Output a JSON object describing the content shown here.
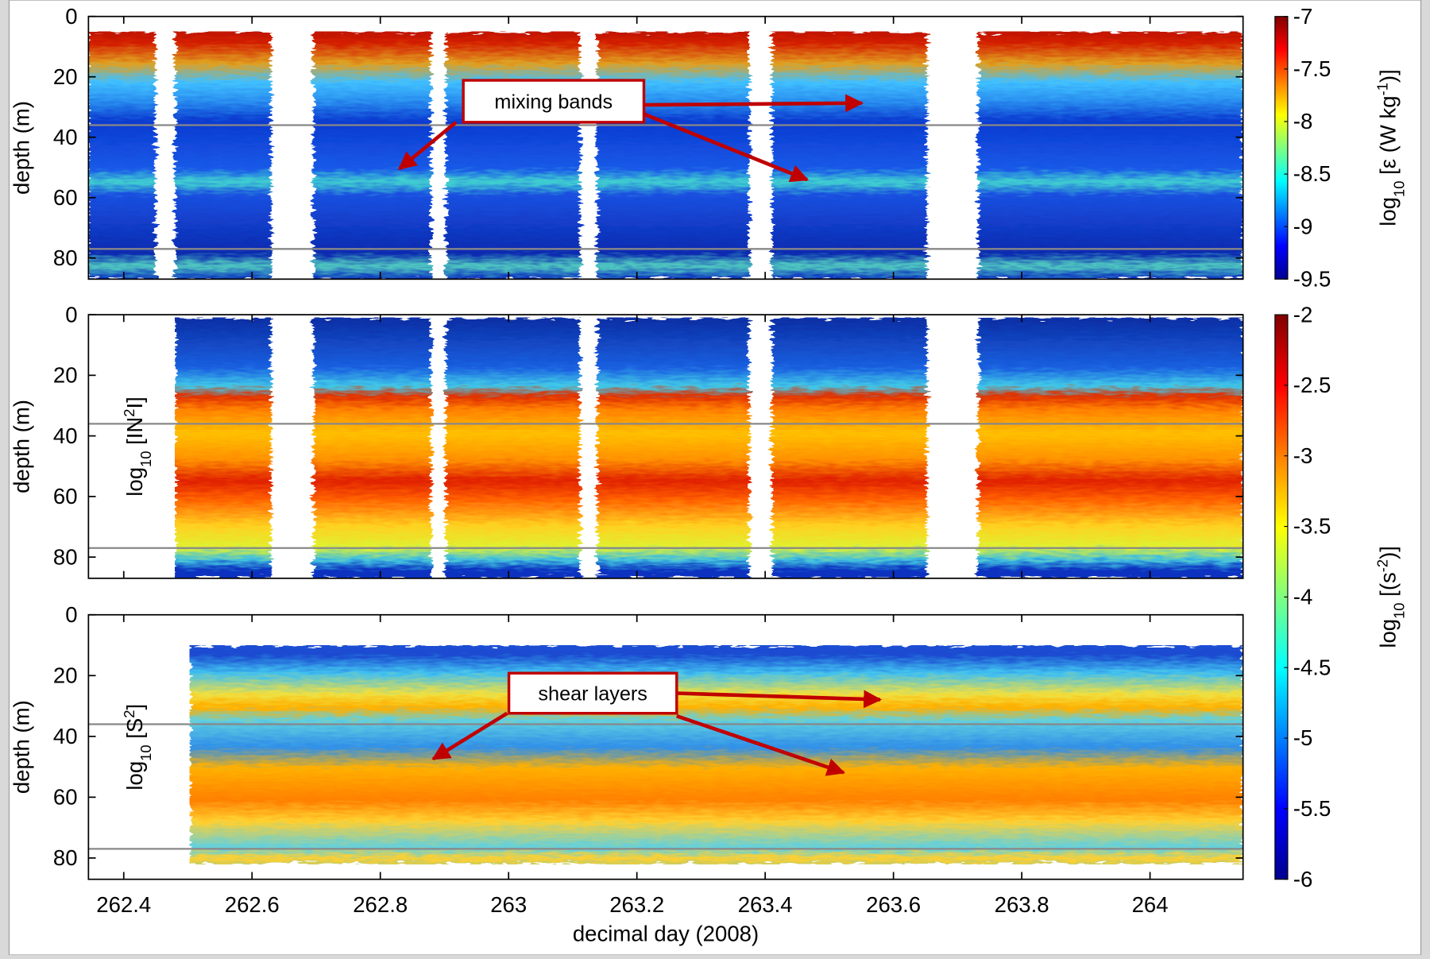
{
  "chart_data": [
    {
      "type": "heatmap",
      "ylabel": "depth (m)",
      "xlim": [
        262.345,
        264.145
      ],
      "ylim": [
        0,
        87
      ],
      "yticks": [
        0,
        20,
        40,
        60,
        80
      ],
      "depth_range": [
        5,
        87
      ],
      "data_segments": [
        [
          262.345,
          262.449
        ],
        [
          262.48,
          262.63
        ],
        [
          262.696,
          262.879
        ],
        [
          262.902,
          263.111
        ],
        [
          263.138,
          263.375
        ],
        [
          263.411,
          263.652
        ],
        [
          263.732,
          264.145
        ]
      ],
      "reference_depths": [
        36,
        77
      ],
      "colorbar": {
        "label": [
          {
            "text": "log"
          },
          {
            "text": "10",
            "sub": true
          },
          {
            "text": " [ε (W kg"
          },
          {
            "text": "-1",
            "sup": true
          },
          {
            "text": ")]"
          }
        ],
        "lim": [
          -9.5,
          -7
        ],
        "ticks": [
          -9.5,
          -9,
          -8.5,
          -8,
          -7.5,
          -7
        ]
      },
      "annotations": [
        {
          "text": "mixing bands"
        }
      ]
    },
    {
      "type": "heatmap",
      "ylabel": "depth (m)",
      "panel_label": [
        {
          "text": "log"
        },
        {
          "text": "10",
          "sub": true
        },
        {
          "text": " [IN"
        },
        {
          "text": "2",
          "sup": true
        },
        {
          "text": "I]"
        }
      ],
      "xlim": [
        262.345,
        264.145
      ],
      "ylim": [
        0,
        87
      ],
      "yticks": [
        0,
        20,
        40,
        60,
        80
      ],
      "depth_range": [
        1,
        87
      ],
      "data_segments": [
        [
          262.48,
          262.63
        ],
        [
          262.696,
          262.879
        ],
        [
          262.902,
          263.111
        ],
        [
          263.138,
          263.375
        ],
        [
          263.411,
          263.652
        ],
        [
          263.732,
          264.145
        ]
      ],
      "reference_depths": [
        36,
        77
      ],
      "colorbar": {
        "label": [
          {
            "text": "log"
          },
          {
            "text": "10",
            "sub": true
          },
          {
            "text": " [(s"
          },
          {
            "text": "-2",
            "sup": true
          },
          {
            "text": ")]"
          }
        ],
        "lim": [
          -6,
          -2
        ],
        "ticks": [
          -6,
          -5.5,
          -5,
          -4.5,
          -4,
          -3.5,
          -3,
          -2.5,
          -2
        ]
      }
    },
    {
      "type": "heatmap",
      "ylabel": "depth (m)",
      "panel_label": [
        {
          "text": "log"
        },
        {
          "text": "10",
          "sub": true
        },
        {
          "text": " [S"
        },
        {
          "text": "2",
          "sup": true
        },
        {
          "text": "]"
        }
      ],
      "xlabel": "decimal day (2008)",
      "xlim": [
        262.345,
        264.145
      ],
      "xticks": [
        262.4,
        262.6,
        262.8,
        263,
        263.2,
        263.4,
        263.6,
        263.8,
        264
      ],
      "ylim": [
        0,
        87
      ],
      "yticks": [
        0,
        20,
        40,
        60,
        80
      ],
      "depth_range": [
        10,
        82
      ],
      "data_segments": [
        [
          262.503,
          264.145
        ]
      ],
      "reference_depths": [
        36,
        77
      ],
      "annotations": [
        {
          "text": "shear layers"
        }
      ]
    }
  ]
}
